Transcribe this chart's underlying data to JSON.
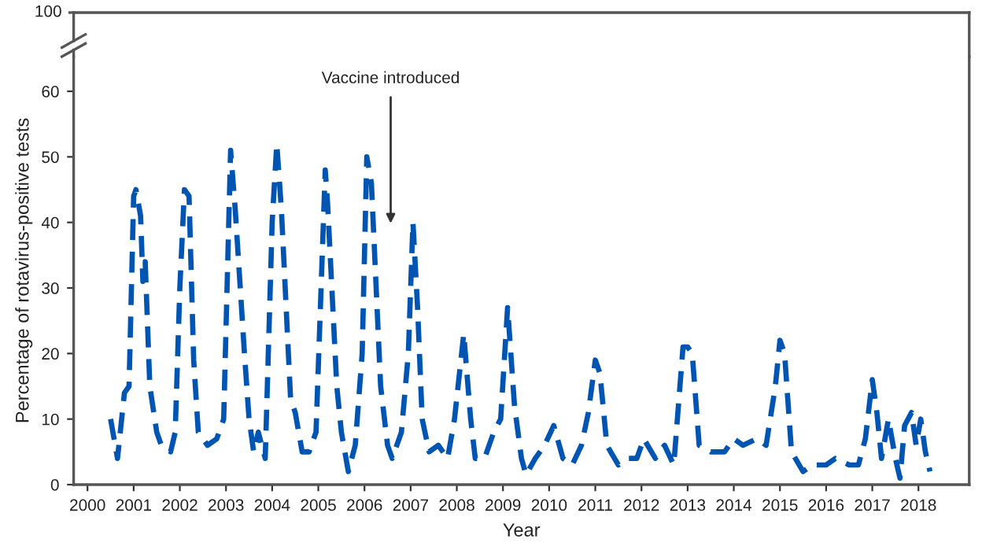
{
  "chart_data": {
    "type": "line",
    "xlabel": "Year",
    "ylabel": "Percentage of rotavirus-positive tests",
    "xlim": [
      1999.7,
      2019.1
    ],
    "xticks": [
      2000,
      2001,
      2002,
      2003,
      2004,
      2005,
      2006,
      2007,
      2008,
      2009,
      2010,
      2011,
      2012,
      2013,
      2014,
      2015,
      2016,
      2017,
      2018
    ],
    "ylim": [
      0,
      65.3
    ],
    "yticks": [
      0,
      10,
      20,
      30,
      40,
      50,
      60
    ],
    "grid": false,
    "line_style": "dashed",
    "marker": "none",
    "annotations": [
      "100",
      "Vaccine introduced"
    ],
    "series": [
      {
        "color": "#0055b3",
        "x": [
          2000.5,
          2000.65,
          2000.8,
          2000.9,
          2001.0,
          2001.05,
          2001.15,
          2001.2,
          2001.25,
          2001.35,
          2001.5,
          2001.6,
          2001.8,
          2001.9,
          2002.0,
          2002.1,
          2002.2,
          2002.3,
          2002.4,
          2002.6,
          2002.8,
          2002.95,
          2003.1,
          2003.2,
          2003.4,
          2003.5,
          2003.6,
          2003.7,
          2003.85,
          2004.0,
          2004.1,
          2004.2,
          2004.4,
          2004.5,
          2004.65,
          2004.8,
          2004.95,
          2005.15,
          2005.2,
          2005.4,
          2005.5,
          2005.65,
          2005.8,
          2005.95,
          2006.05,
          2006.15,
          2006.35,
          2006.5,
          2006.6,
          2006.8,
          2006.95,
          2007.05,
          2007.15,
          2007.25,
          2007.4,
          2007.6,
          2007.8,
          2007.95,
          2008.15,
          2008.3,
          2008.4,
          2008.6,
          2008.8,
          2008.95,
          2009.1,
          2009.25,
          2009.4,
          2009.5,
          2009.7,
          2009.9,
          2010.1,
          2010.3,
          2010.5,
          2010.7,
          2010.85,
          2011.0,
          2011.1,
          2011.25,
          2011.5,
          2011.7,
          2011.9,
          2012.05,
          2012.3,
          2012.5,
          2012.7,
          2012.9,
          2013.0,
          2013.1,
          2013.25,
          2013.5,
          2013.8,
          2014.0,
          2014.2,
          2014.5,
          2014.7,
          2014.9,
          2015.0,
          2015.1,
          2015.25,
          2015.5,
          2015.7,
          2016.0,
          2016.2,
          2016.5,
          2016.7,
          2016.85,
          2017.0,
          2017.1,
          2017.2,
          2017.35,
          2017.5,
          2017.6,
          2017.7,
          2017.85,
          2017.95,
          2018.05,
          2018.15,
          2018.25
        ],
        "values": [
          10,
          4,
          14,
          15,
          44,
          45,
          41,
          31,
          34,
          15,
          8,
          6,
          5,
          8,
          30,
          45,
          44,
          19,
          8,
          6,
          7,
          10,
          51,
          42,
          20,
          10,
          5,
          8,
          4,
          40,
          52,
          42,
          13,
          11,
          5,
          5,
          8,
          48,
          43,
          15,
          8,
          2,
          6,
          20,
          50,
          46,
          15,
          6,
          4,
          8,
          20,
          40,
          27,
          10,
          5,
          6,
          4,
          10,
          23,
          10,
          4,
          4,
          8,
          10,
          27,
          12,
          4,
          1.5,
          4,
          6,
          9,
          4,
          3,
          6,
          11,
          19,
          17,
          6,
          3,
          4,
          4,
          7,
          4,
          6,
          3,
          21,
          21,
          20,
          6,
          5,
          5,
          7,
          6,
          7,
          6,
          15,
          22,
          20,
          5,
          2,
          3,
          3,
          4,
          3,
          3,
          7,
          16,
          11,
          4,
          10,
          4,
          1,
          9,
          11,
          6,
          10,
          5,
          2
        ]
      }
    ]
  }
}
